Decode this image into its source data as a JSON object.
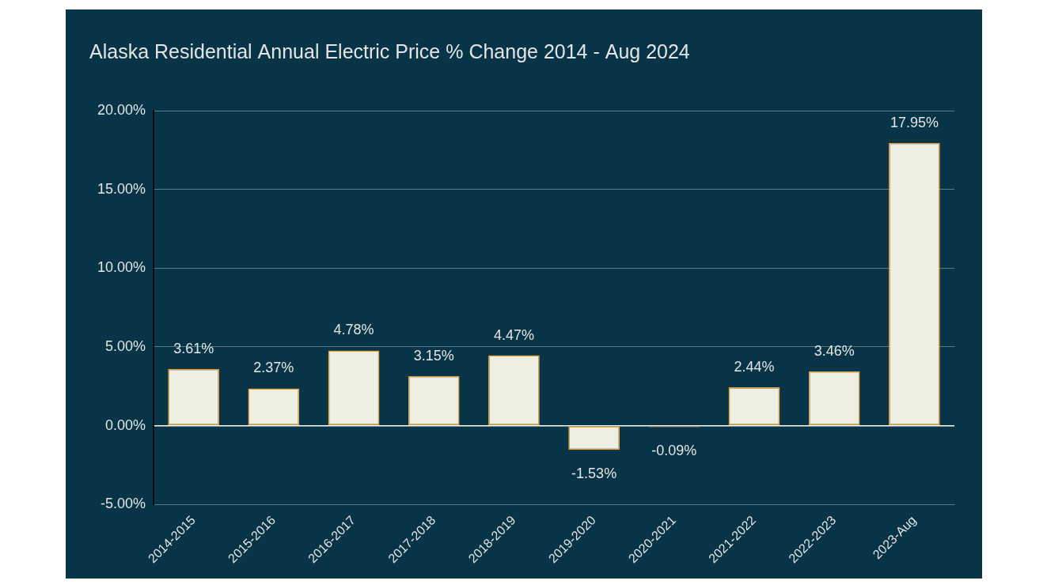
{
  "chart_data": {
    "type": "bar",
    "title": "Alaska Residential Annual Electric Price % Change 2014 - Aug 2024",
    "categories": [
      "2014-2015",
      "2015-2016",
      "2016-2017",
      "2017-2018",
      "2018-2019",
      "2019-2020",
      "2020-2021",
      "2021-2022",
      "2022-2023",
      "2023-Aug"
    ],
    "values": [
      3.61,
      2.37,
      4.78,
      3.15,
      4.47,
      -1.53,
      -0.09,
      2.44,
      3.46,
      17.95
    ],
    "value_labels": [
      "3.61%",
      "2.37%",
      "4.78%",
      "3.15%",
      "4.47%",
      "-1.53%",
      "-0.09%",
      "2.44%",
      "3.46%",
      "17.95%"
    ],
    "color": "#eeeee2",
    "ylim": [
      -5,
      20
    ],
    "yticks": [
      {
        "value": -5,
        "label": "-5.00%"
      },
      {
        "value": 0,
        "label": "0.00%"
      },
      {
        "value": 5,
        "label": "5.00%"
      },
      {
        "value": 10,
        "label": "10.00%"
      },
      {
        "value": 15,
        "label": "15.00%"
      },
      {
        "value": 20,
        "label": "20.00%"
      }
    ],
    "grid": true,
    "data_labels": true
  }
}
